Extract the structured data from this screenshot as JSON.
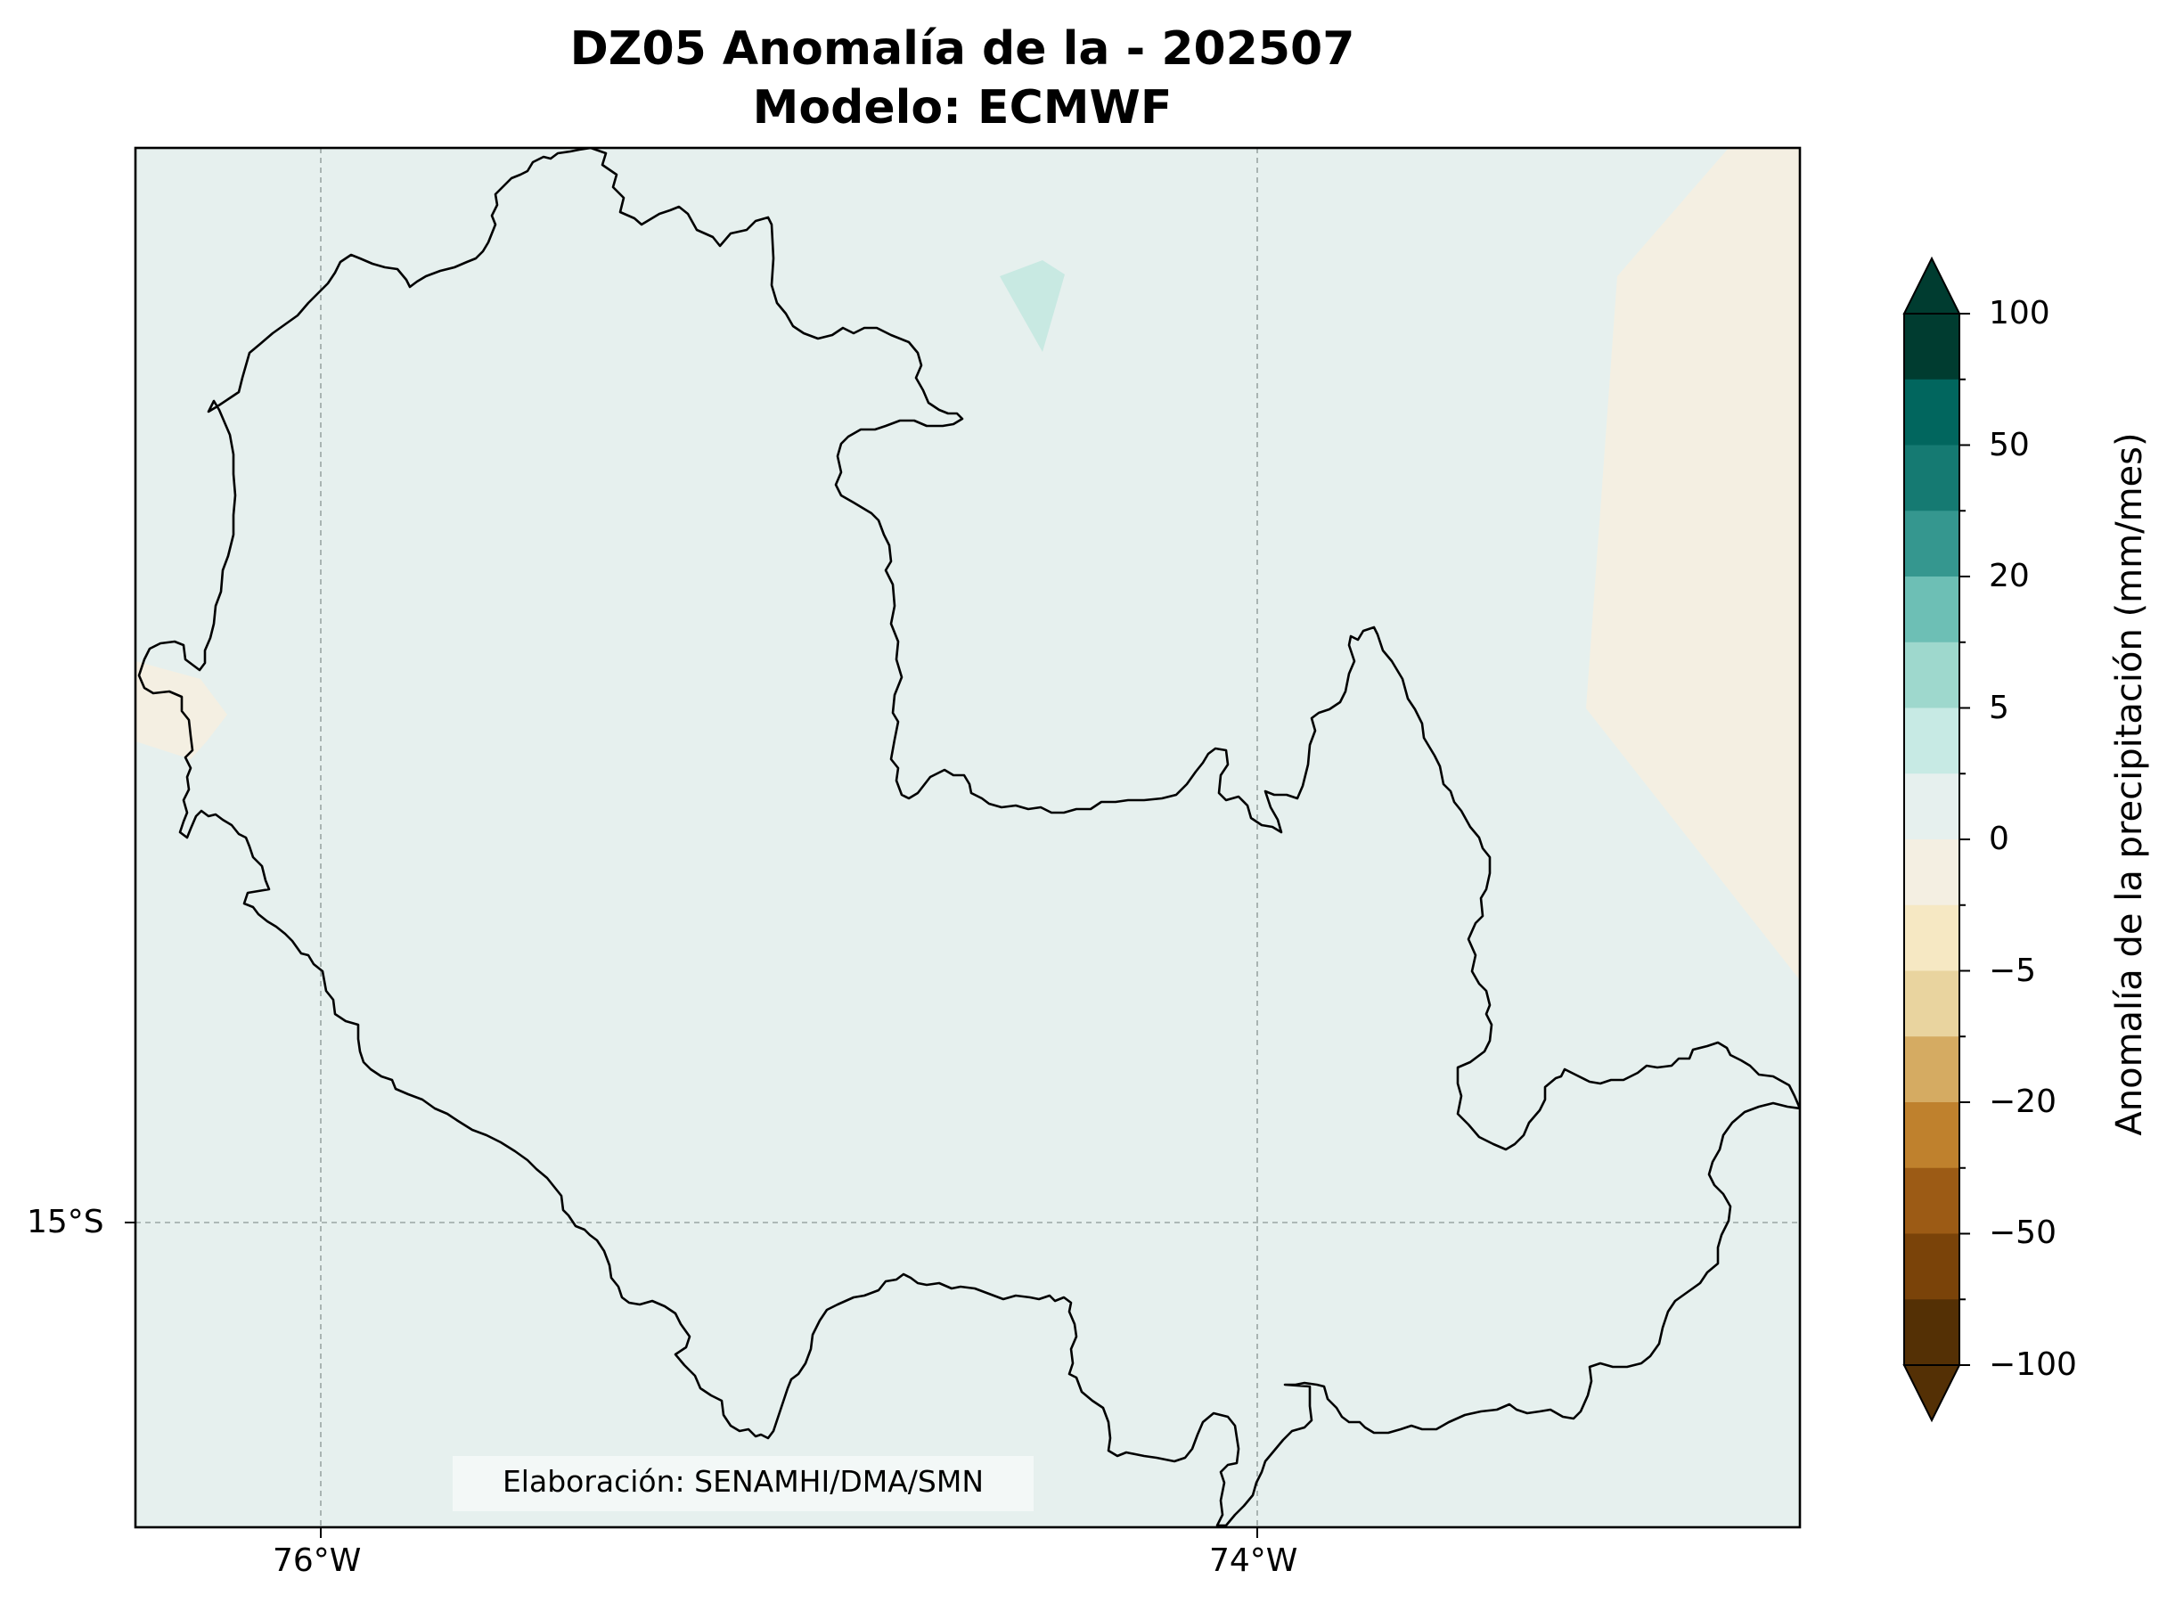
{
  "title": {
    "line1": "DZ05 Anomalía de la - 202507",
    "line2": "Modelo: ECMWF"
  },
  "map": {
    "xticks": [
      "76°W",
      "74°W"
    ],
    "yticks": [
      "15°S"
    ],
    "credit": "Elaboración: SENAMHI/DMA/SMN",
    "background_color": "#e6f0ee",
    "negative_area_color": "#f4efe2",
    "positive_area_color": "#c8e9e2",
    "border_color": "#000000",
    "gridlines": true
  },
  "colorbar": {
    "label": "Anomalía de la precipitación (mm/mes)",
    "tick_labels": [
      "100",
      "50",
      "20",
      "5",
      "0",
      "−5",
      "−20",
      "−50",
      "−100"
    ],
    "extend": "both",
    "colors_top_to_bottom": [
      "#003c30",
      "#01665e",
      "#157a72",
      "#35978f",
      "#6dbfb5",
      "#9ed8cd",
      "#c7eae4",
      "#e6f0ee",
      "#f4efe2",
      "#f6e8c3",
      "#e9d49f",
      "#d5ab62",
      "#bf812d",
      "#9c5b15",
      "#7a4309",
      "#543005"
    ]
  }
}
